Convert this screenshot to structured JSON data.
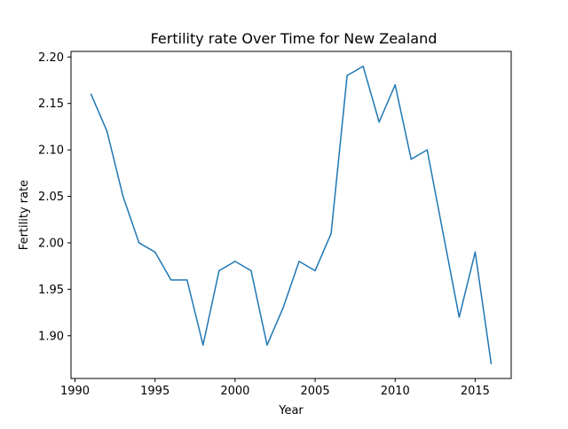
{
  "chart_data": {
    "type": "line",
    "title": "Fertility rate Over Time for New Zealand",
    "xlabel": "Year",
    "ylabel": "Fertility rate",
    "xlim": [
      1989.75,
      2017.25
    ],
    "ylim": [
      1.854,
      2.206
    ],
    "xticks": [
      1990,
      1995,
      2000,
      2005,
      2010,
      2015
    ],
    "yticks": [
      1.9,
      1.95,
      2.0,
      2.05,
      2.1,
      2.15,
      2.2
    ],
    "ytick_decimals": 2,
    "grid": false,
    "legend": "none",
    "series": [
      {
        "color": "#1f77b4",
        "x": [
          1991,
          1992,
          1993,
          1994,
          1995,
          1996,
          1997,
          1998,
          1999,
          2000,
          2001,
          2002,
          2003,
          2004,
          2005,
          2006,
          2007,
          2008,
          2009,
          2010,
          2011,
          2012,
          2013,
          2014,
          2015,
          2016
        ],
        "y": [
          2.16,
          2.12,
          2.05,
          2.0,
          1.99,
          1.96,
          1.96,
          1.89,
          1.97,
          1.98,
          1.97,
          1.89,
          1.93,
          1.98,
          1.97,
          2.01,
          2.18,
          2.19,
          2.13,
          2.17,
          2.09,
          2.1,
          2.01,
          1.92,
          1.99,
          1.87
        ]
      }
    ]
  }
}
